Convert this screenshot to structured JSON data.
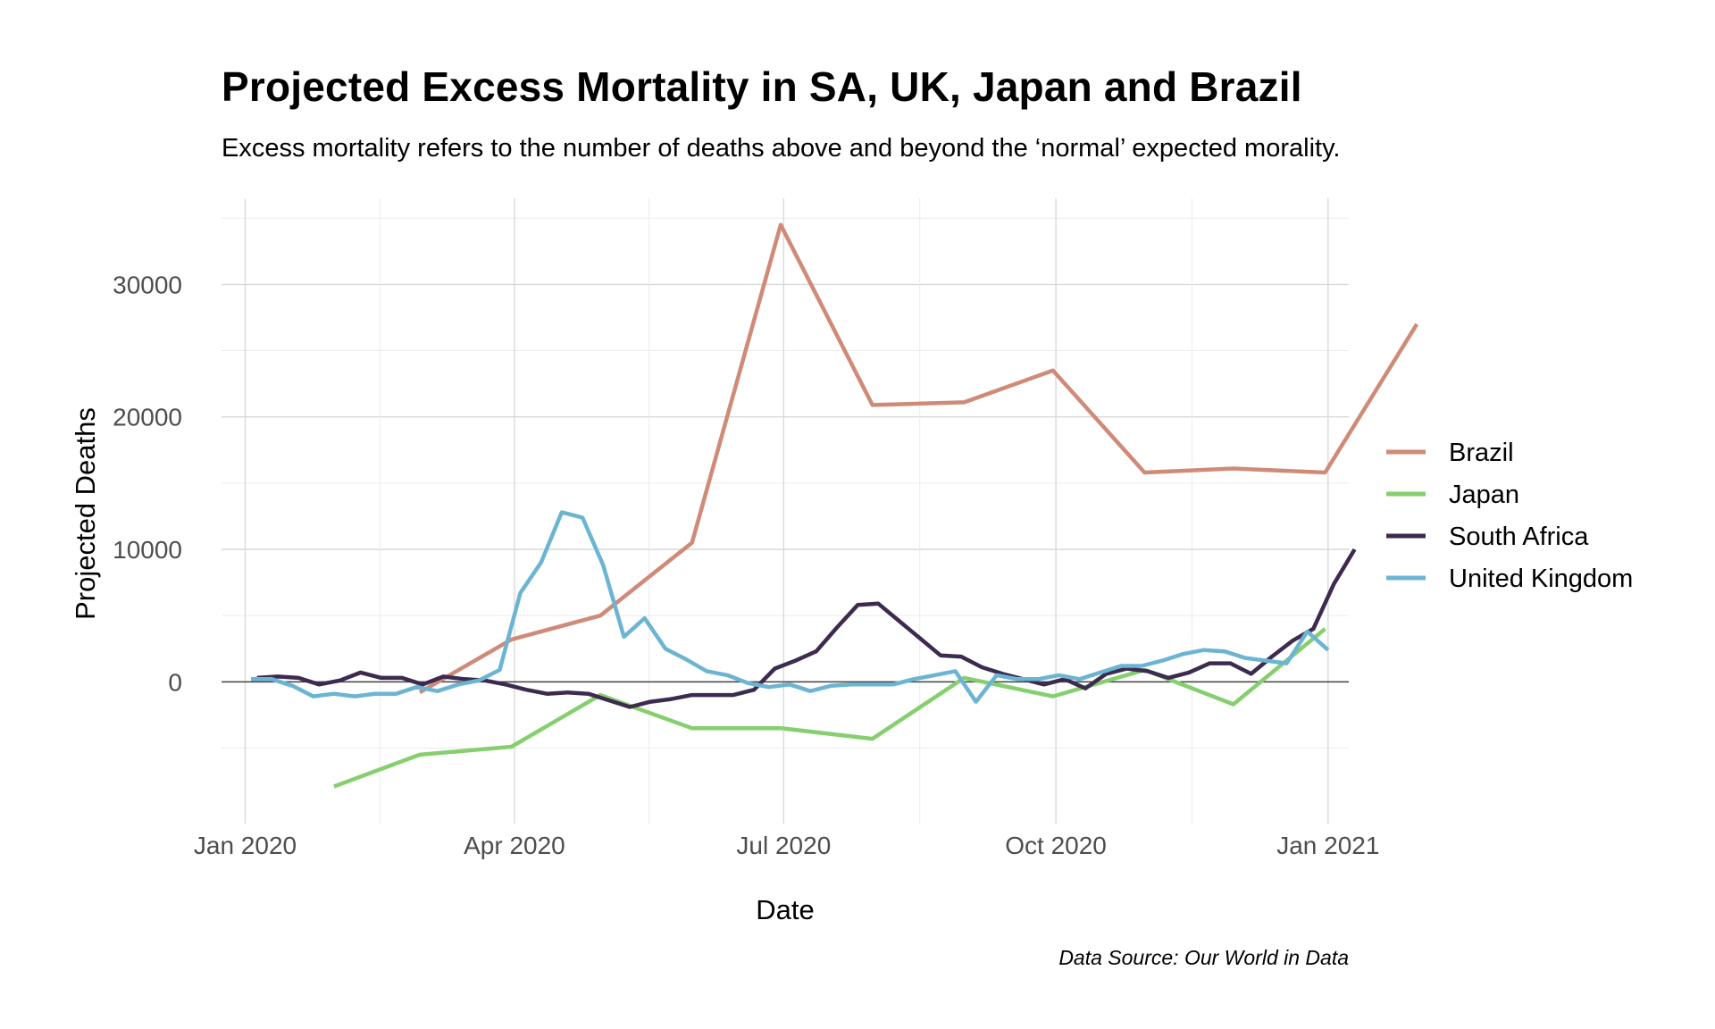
{
  "chart_data": {
    "type": "line",
    "title": "Projected Excess Mortality in SA, UK, Japan and Brazil",
    "subtitle": "Excess mortality refers to the number of deaths above and beyond the ‘normal’ expected morality.",
    "xlabel": "Date",
    "ylabel": "Projected Deaths",
    "caption": "Data Source: Our World in Data",
    "x_ticks": [
      "2020-01-01",
      "2020-04-01",
      "2020-07-01",
      "2020-10-01",
      "2021-01-01"
    ],
    "x_tick_labels": [
      "Jan 2020",
      "Apr 2020",
      "Jul 2020",
      "Oct 2020",
      "Jan 2021"
    ],
    "y_ticks": [
      0,
      10000,
      20000,
      30000
    ],
    "y_tick_labels": [
      "0",
      "10000",
      "20000",
      "30000"
    ],
    "xlim": [
      "2019-12-24",
      "2021-01-08"
    ],
    "ylim": [
      -10700,
      36500
    ],
    "grid": true,
    "legend_position": "right",
    "zero_line": true,
    "series": [
      {
        "name": "Brazil",
        "color": "#cf8a78",
        "points": [
          [
            "2020-02-29",
            -800
          ],
          [
            "2020-03-31",
            3200
          ],
          [
            "2020-04-30",
            5000
          ],
          [
            "2020-05-31",
            10500
          ],
          [
            "2020-06-30",
            34500
          ],
          [
            "2020-07-31",
            20900
          ],
          [
            "2020-08-31",
            21100
          ],
          [
            "2020-09-30",
            23500
          ],
          [
            "2020-10-31",
            15800
          ],
          [
            "2020-11-30",
            16100
          ],
          [
            "2020-12-31",
            15800
          ],
          [
            "2021-01-31",
            27000
          ]
        ]
      },
      {
        "name": "Japan",
        "color": "#86cf6e",
        "points": [
          [
            "2020-01-31",
            -7900
          ],
          [
            "2020-02-29",
            -5500
          ],
          [
            "2020-03-31",
            -4900
          ],
          [
            "2020-04-30",
            -1000
          ],
          [
            "2020-05-31",
            -3500
          ],
          [
            "2020-06-30",
            -3500
          ],
          [
            "2020-07-31",
            -4300
          ],
          [
            "2020-08-31",
            300
          ],
          [
            "2020-09-30",
            -1100
          ],
          [
            "2020-10-31",
            900
          ],
          [
            "2020-11-30",
            -1700
          ],
          [
            "2020-12-31",
            4000
          ]
        ]
      },
      {
        "name": "South Africa",
        "color": "#3d2b4f",
        "points": [
          [
            "2020-01-05",
            300
          ],
          [
            "2020-01-12",
            400
          ],
          [
            "2020-01-19",
            300
          ],
          [
            "2020-01-26",
            -200
          ],
          [
            "2020-02-02",
            100
          ],
          [
            "2020-02-09",
            700
          ],
          [
            "2020-02-16",
            300
          ],
          [
            "2020-02-23",
            300
          ],
          [
            "2020-03-01",
            -200
          ],
          [
            "2020-03-08",
            400
          ],
          [
            "2020-03-15",
            200
          ],
          [
            "2020-03-22",
            100
          ],
          [
            "2020-03-29",
            -200
          ],
          [
            "2020-04-05",
            -600
          ],
          [
            "2020-04-12",
            -900
          ],
          [
            "2020-04-19",
            -800
          ],
          [
            "2020-04-26",
            -900
          ],
          [
            "2020-05-03",
            -1400
          ],
          [
            "2020-05-10",
            -1900
          ],
          [
            "2020-05-17",
            -1500
          ],
          [
            "2020-05-24",
            -1300
          ],
          [
            "2020-05-31",
            -1000
          ],
          [
            "2020-06-07",
            -1000
          ],
          [
            "2020-06-14",
            -1000
          ],
          [
            "2020-06-21",
            -600
          ],
          [
            "2020-06-28",
            1000
          ],
          [
            "2020-07-05",
            1600
          ],
          [
            "2020-07-12",
            2300
          ],
          [
            "2020-07-19",
            4100
          ],
          [
            "2020-07-26",
            5800
          ],
          [
            "2020-08-02",
            5900
          ],
          [
            "2020-08-09",
            4600
          ],
          [
            "2020-08-16",
            3300
          ],
          [
            "2020-08-23",
            2000
          ],
          [
            "2020-08-30",
            1900
          ],
          [
            "2020-09-06",
            1100
          ],
          [
            "2020-09-13",
            600
          ],
          [
            "2020-09-20",
            200
          ],
          [
            "2020-09-27",
            -200
          ],
          [
            "2020-10-04",
            200
          ],
          [
            "2020-10-11",
            -500
          ],
          [
            "2020-10-18",
            600
          ],
          [
            "2020-10-25",
            1000
          ],
          [
            "2020-11-01",
            800
          ],
          [
            "2020-11-08",
            300
          ],
          [
            "2020-11-15",
            700
          ],
          [
            "2020-11-22",
            1400
          ],
          [
            "2020-11-29",
            1400
          ],
          [
            "2020-12-06",
            600
          ],
          [
            "2020-12-13",
            1900
          ],
          [
            "2020-12-20",
            3100
          ],
          [
            "2020-12-27",
            4000
          ],
          [
            "2021-01-03",
            7400
          ],
          [
            "2021-01-10",
            10000
          ]
        ]
      },
      {
        "name": "United Kingdom",
        "color": "#6cb5d2",
        "points": [
          [
            "2020-01-03",
            200
          ],
          [
            "2020-01-10",
            200
          ],
          [
            "2020-01-17",
            -300
          ],
          [
            "2020-01-24",
            -1100
          ],
          [
            "2020-01-31",
            -900
          ],
          [
            "2020-02-07",
            -1100
          ],
          [
            "2020-02-14",
            -900
          ],
          [
            "2020-02-21",
            -900
          ],
          [
            "2020-02-28",
            -400
          ],
          [
            "2020-03-06",
            -700
          ],
          [
            "2020-03-13",
            -200
          ],
          [
            "2020-03-20",
            100
          ],
          [
            "2020-03-27",
            900
          ],
          [
            "2020-04-03",
            6700
          ],
          [
            "2020-04-10",
            9000
          ],
          [
            "2020-04-17",
            12800
          ],
          [
            "2020-04-24",
            12400
          ],
          [
            "2020-05-01",
            8800
          ],
          [
            "2020-05-08",
            3400
          ],
          [
            "2020-05-15",
            4800
          ],
          [
            "2020-05-22",
            2500
          ],
          [
            "2020-05-29",
            1700
          ],
          [
            "2020-06-05",
            800
          ],
          [
            "2020-06-12",
            500
          ],
          [
            "2020-06-19",
            -100
          ],
          [
            "2020-06-26",
            -400
          ],
          [
            "2020-07-03",
            -200
          ],
          [
            "2020-07-10",
            -700
          ],
          [
            "2020-07-17",
            -300
          ],
          [
            "2020-07-24",
            -200
          ],
          [
            "2020-07-31",
            -200
          ],
          [
            "2020-08-07",
            -200
          ],
          [
            "2020-08-14",
            200
          ],
          [
            "2020-08-21",
            500
          ],
          [
            "2020-08-28",
            800
          ],
          [
            "2020-09-04",
            -1500
          ],
          [
            "2020-09-11",
            500
          ],
          [
            "2020-09-18",
            200
          ],
          [
            "2020-09-25",
            200
          ],
          [
            "2020-10-02",
            500
          ],
          [
            "2020-10-09",
            200
          ],
          [
            "2020-10-16",
            700
          ],
          [
            "2020-10-23",
            1200
          ],
          [
            "2020-10-30",
            1200
          ],
          [
            "2020-11-06",
            1600
          ],
          [
            "2020-11-13",
            2100
          ],
          [
            "2020-11-20",
            2400
          ],
          [
            "2020-11-27",
            2300
          ],
          [
            "2020-12-04",
            1800
          ],
          [
            "2020-12-11",
            1600
          ],
          [
            "2020-12-18",
            1400
          ],
          [
            "2020-12-25",
            3800
          ],
          [
            "2021-01-01",
            2400
          ]
        ]
      }
    ]
  }
}
